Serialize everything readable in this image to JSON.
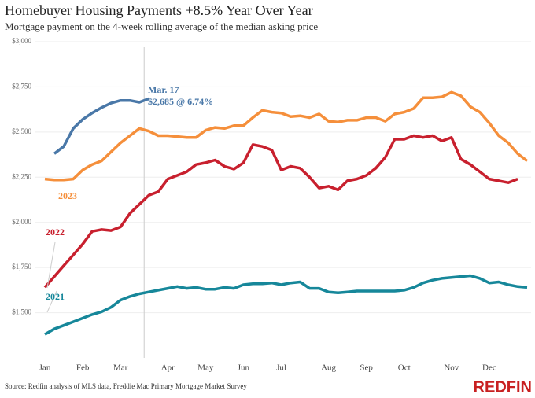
{
  "chart_data": {
    "type": "line",
    "title": "Homebuyer Housing Payments +8.5% Year Over Year",
    "subtitle": "Mortgage payment on the 4-week rolling average of the median asking price",
    "source": "Source: Redfin analysis of MLS data, Freddie Mac Primary Mortgage Market Survey",
    "brand": "REDFIN",
    "annotation": [
      "Mar. 17",
      "$2,685 @ 6.74%"
    ],
    "categories": [
      "Jan",
      null,
      null,
      null,
      "Feb",
      null,
      null,
      null,
      "Mar",
      null,
      null,
      null,
      null,
      "Apr",
      null,
      null,
      null,
      "May",
      null,
      null,
      null,
      "Jun",
      null,
      null,
      null,
      "Jul",
      null,
      null,
      null,
      null,
      "Aug",
      null,
      null,
      null,
      "Sep",
      null,
      null,
      null,
      "Oct",
      null,
      null,
      null,
      null,
      "Nov",
      null,
      null,
      null,
      "Dec",
      null,
      null,
      null,
      null
    ],
    "ylim": [
      1250,
      3000
    ],
    "yticks": [
      {
        "value": 1500,
        "label": "$1,500"
      },
      {
        "value": 1750,
        "label": "$1,750"
      },
      {
        "value": 2000,
        "label": "$2,000"
      },
      {
        "value": 2250,
        "label": "$2,250"
      },
      {
        "value": 2500,
        "label": "$2,500"
      },
      {
        "value": 2750,
        "label": "$2,750"
      },
      {
        "value": 3000,
        "label": "$3,000"
      }
    ],
    "grid": true,
    "series": [
      {
        "name": "2021",
        "color": "#16879a",
        "values": [
          1380,
          1410,
          1430,
          1450,
          1470,
          1490,
          1505,
          1530,
          1570,
          1590,
          1605,
          1615,
          1625,
          1635,
          1645,
          1635,
          1640,
          1630,
          1630,
          1640,
          1635,
          1655,
          1660,
          1660,
          1665,
          1655,
          1665,
          1670,
          1635,
          1635,
          1615,
          1610,
          1615,
          1620,
          1620,
          1620,
          1620,
          1620,
          1625,
          1640,
          1665,
          1680,
          1690,
          1695,
          1700,
          1705,
          1690,
          1665,
          1670,
          1655,
          1645,
          1640
        ]
      },
      {
        "name": "2022",
        "color": "#c8202e",
        "values": [
          1640,
          1700,
          1760,
          1820,
          1880,
          1950,
          1960,
          1955,
          1975,
          2050,
          2100,
          2150,
          2170,
          2240,
          2260,
          2280,
          2320,
          2330,
          2345,
          2310,
          2295,
          2330,
          2430,
          2420,
          2400,
          2290,
          2310,
          2300,
          2250,
          2190,
          2200,
          2180,
          2230,
          2240,
          2260,
          2300,
          2360,
          2460,
          2460,
          2480,
          2470,
          2480,
          2450,
          2470,
          2350,
          2320,
          2280,
          2240,
          2230,
          2220,
          2240,
          null
        ]
      },
      {
        "name": "2023",
        "color": "#f58f3b",
        "values": [
          2240,
          2235,
          2235,
          2240,
          2290,
          2320,
          2340,
          2390,
          2440,
          2480,
          2520,
          2505,
          2480,
          2480,
          2475,
          2470,
          2470,
          2510,
          2525,
          2520,
          2535,
          2535,
          2580,
          2620,
          2610,
          2605,
          2585,
          2590,
          2580,
          2600,
          2560,
          2555,
          2565,
          2565,
          2580,
          2580,
          2560,
          2600,
          2610,
          2630,
          2690,
          2690,
          2695,
          2720,
          2700,
          2640,
          2610,
          2550,
          2480,
          2440,
          2380,
          2340
        ]
      },
      {
        "color": "#4a78a8",
        "values": [
          null,
          2380,
          2420,
          2520,
          2570,
          2605,
          2635,
          2660,
          2675,
          2675,
          2665,
          2685,
          null,
          null,
          null,
          null,
          null,
          null,
          null,
          null,
          null,
          null,
          null,
          null,
          null,
          null,
          null,
          null,
          null,
          null,
          null,
          null,
          null,
          null,
          null,
          null,
          null,
          null,
          null,
          null,
          null,
          null,
          null,
          null,
          null,
          null,
          null,
          null,
          null,
          null,
          null,
          null
        ]
      }
    ]
  }
}
